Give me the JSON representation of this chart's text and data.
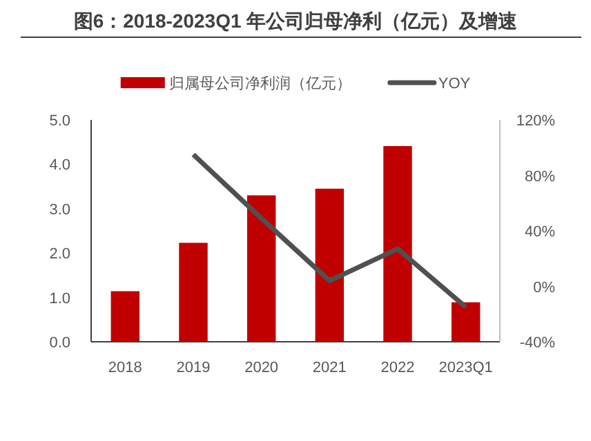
{
  "chart_data": {
    "type": "bar",
    "title": "图6：2018-2023Q1 年公司归母净利（亿元）及增速",
    "categories": [
      "2018",
      "2019",
      "2020",
      "2021",
      "2022",
      "2023Q1"
    ],
    "series": [
      {
        "name": "归属母公司净利润（亿元）",
        "color": "#c00000",
        "values": [
          1.14,
          2.23,
          3.3,
          3.45,
          4.41,
          0.89
        ]
      },
      {
        "name": "YOY",
        "type": "line",
        "axis": "y2",
        "color": "#505050",
        "values": [
          null,
          95,
          49,
          4,
          27,
          -15
        ]
      }
    ],
    "ylim": [
      0,
      5
    ],
    "yticks": [
      {
        "value": 0,
        "label": "0.0"
      },
      {
        "value": 1,
        "label": "1.0"
      },
      {
        "value": 2,
        "label": "2.0"
      },
      {
        "value": 3,
        "label": "3.0"
      },
      {
        "value": 4,
        "label": "4.0"
      },
      {
        "value": 5,
        "label": "5.0"
      }
    ],
    "y2lim": [
      -40,
      120
    ],
    "y2ticks": [
      {
        "value": -40,
        "label": "-40%"
      },
      {
        "value": 0,
        "label": "0%"
      },
      {
        "value": 40,
        "label": "40%"
      },
      {
        "value": 80,
        "label": "80%"
      },
      {
        "value": 120,
        "label": "120%"
      }
    ],
    "grid": false,
    "legend": "top",
    "marker": "none"
  }
}
